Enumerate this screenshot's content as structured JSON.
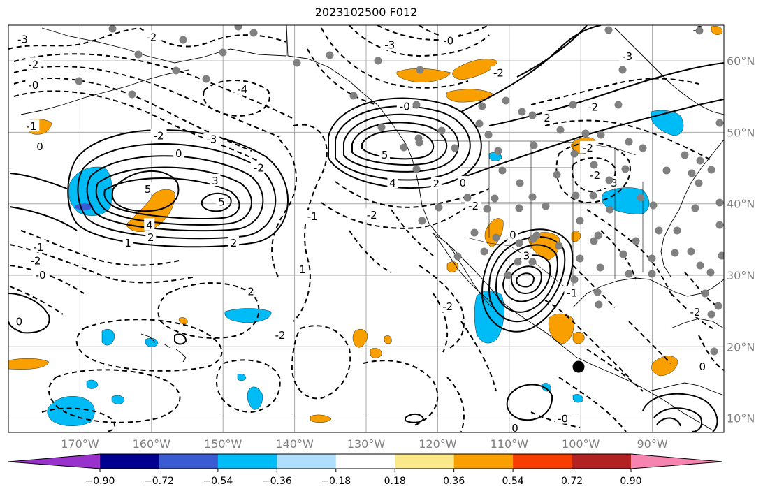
{
  "title": "2023102500 F012",
  "map": {
    "lon_range": [
      -180,
      -80
    ],
    "lat_range": [
      8,
      65
    ],
    "lat_ticks": [
      {
        "lat": 60,
        "label": "60°N"
      },
      {
        "lat": 50,
        "label": "50°N"
      },
      {
        "lat": 40,
        "label": "40°N"
      },
      {
        "lat": 30,
        "label": "30°N"
      },
      {
        "lat": 20,
        "label": "20°N"
      },
      {
        "lat": 10,
        "label": "10°N"
      }
    ],
    "lon_ticks": [
      {
        "lon": -170,
        "label": "170°W"
      },
      {
        "lon": -160,
        "label": "160°W"
      },
      {
        "lon": -150,
        "label": "150°W"
      },
      {
        "lon": -140,
        "label": "140°W"
      },
      {
        "lon": -130,
        "label": "130°W"
      },
      {
        "lon": -120,
        "label": "120°W"
      },
      {
        "lon": -110,
        "label": "110°W"
      },
      {
        "lon": -100,
        "label": "100°W"
      },
      {
        "lon": -90,
        "label": "90°W"
      }
    ],
    "gridlines": true,
    "coastline_color": "#000000",
    "contour_color": "#000000",
    "contour_labels": [
      {
        "text": "5",
        "lon": -160.5,
        "lat": 42.0
      },
      {
        "text": "5",
        "lon": -150.2,
        "lat": 40.2
      },
      {
        "text": "4",
        "lon": -160.3,
        "lat": 37.0
      },
      {
        "text": "3",
        "lon": -151.1,
        "lat": 43.2
      },
      {
        "text": "2",
        "lon": -160.1,
        "lat": 35.3
      },
      {
        "text": "1",
        "lon": -163.3,
        "lat": 34.5
      },
      {
        "text": "2",
        "lon": -148.5,
        "lat": 34.5
      },
      {
        "text": "0",
        "lon": -156.2,
        "lat": 47.0
      },
      {
        "text": "-2",
        "lon": -159.0,
        "lat": 49.5
      },
      {
        "text": "-3",
        "lon": -151.6,
        "lat": 49.0
      },
      {
        "text": "-4",
        "lon": -147.3,
        "lat": 56.0
      },
      {
        "text": "-2",
        "lon": -145.0,
        "lat": 45.0
      },
      {
        "text": "-2",
        "lon": -176.5,
        "lat": 59.5
      },
      {
        "text": "-0",
        "lon": -176.5,
        "lat": 56.6
      },
      {
        "text": "-1",
        "lon": -176.8,
        "lat": 50.8
      },
      {
        "text": "0",
        "lon": -175.6,
        "lat": 48.0
      },
      {
        "text": "-2",
        "lon": -160.0,
        "lat": 63.3
      },
      {
        "text": "-3",
        "lon": -178.0,
        "lat": 63.0
      },
      {
        "text": "-1",
        "lon": -175.8,
        "lat": 33.9
      },
      {
        "text": "-2",
        "lon": -176.2,
        "lat": 32.0
      },
      {
        "text": "-0",
        "lon": -175.5,
        "lat": 30.0
      },
      {
        "text": "0",
        "lon": -178.5,
        "lat": 23.5
      },
      {
        "text": "1",
        "lon": -138.9,
        "lat": 30.8
      },
      {
        "text": "2",
        "lon": -146.1,
        "lat": 27.7
      },
      {
        "text": "-2",
        "lon": -142.0,
        "lat": 21.6
      },
      {
        "text": "-1",
        "lon": -137.5,
        "lat": 38.2
      },
      {
        "text": "-2",
        "lon": -129.2,
        "lat": 38.4
      },
      {
        "text": "5",
        "lon": -127.4,
        "lat": 46.8
      },
      {
        "text": "4",
        "lon": -126.3,
        "lat": 42.9
      },
      {
        "text": "2",
        "lon": -120.2,
        "lat": 42.8
      },
      {
        "text": "0",
        "lon": -116.5,
        "lat": 42.9
      },
      {
        "text": "-2",
        "lon": -115.0,
        "lat": 39.7
      },
      {
        "text": "-0",
        "lon": -124.6,
        "lat": 53.6
      },
      {
        "text": "-0",
        "lon": -118.5,
        "lat": 62.8
      },
      {
        "text": "-2",
        "lon": -111.5,
        "lat": 58.3
      },
      {
        "text": "-3",
        "lon": -126.7,
        "lat": 62.2
      },
      {
        "text": "2",
        "lon": -104.7,
        "lat": 52.0
      },
      {
        "text": "-2",
        "lon": -98.3,
        "lat": 53.5
      },
      {
        "text": "-3",
        "lon": -93.5,
        "lat": 60.6
      },
      {
        "text": "-3",
        "lon": -83.6,
        "lat": 64.3
      },
      {
        "text": "-2",
        "lon": -99.0,
        "lat": 47.8
      },
      {
        "text": "-2",
        "lon": -98.0,
        "lat": 44.0
      },
      {
        "text": "-3",
        "lon": -95.6,
        "lat": 42.9
      },
      {
        "text": "0",
        "lon": -109.5,
        "lat": 35.6
      },
      {
        "text": "3",
        "lon": -107.6,
        "lat": 32.7
      },
      {
        "text": "-2",
        "lon": -118.6,
        "lat": 25.6
      },
      {
        "text": "-1",
        "lon": -101.2,
        "lat": 27.5
      },
      {
        "text": "0",
        "lon": -109.2,
        "lat": 8.6
      },
      {
        "text": "-0",
        "lon": -102.5,
        "lat": 9.9
      },
      {
        "text": "-2",
        "lon": -84.0,
        "lat": 24.8
      },
      {
        "text": "0",
        "lon": -83.0,
        "lat": 17.2
      }
    ]
  },
  "colorbar": {
    "ticks": [
      "−0.90",
      "−0.72",
      "−0.54",
      "−0.36",
      "−0.18",
      "0.18",
      "0.36",
      "0.54",
      "0.72",
      "0.90"
    ],
    "under_color": "#9932cc",
    "over_color": "#f784b0",
    "bins": [
      "#000090",
      "#3b5bd2",
      "#00bcf6",
      "#aee0fb",
      "#ffffff",
      "#fae88a",
      "#f9a000",
      "#f73c00",
      "#b22222"
    ]
  }
}
